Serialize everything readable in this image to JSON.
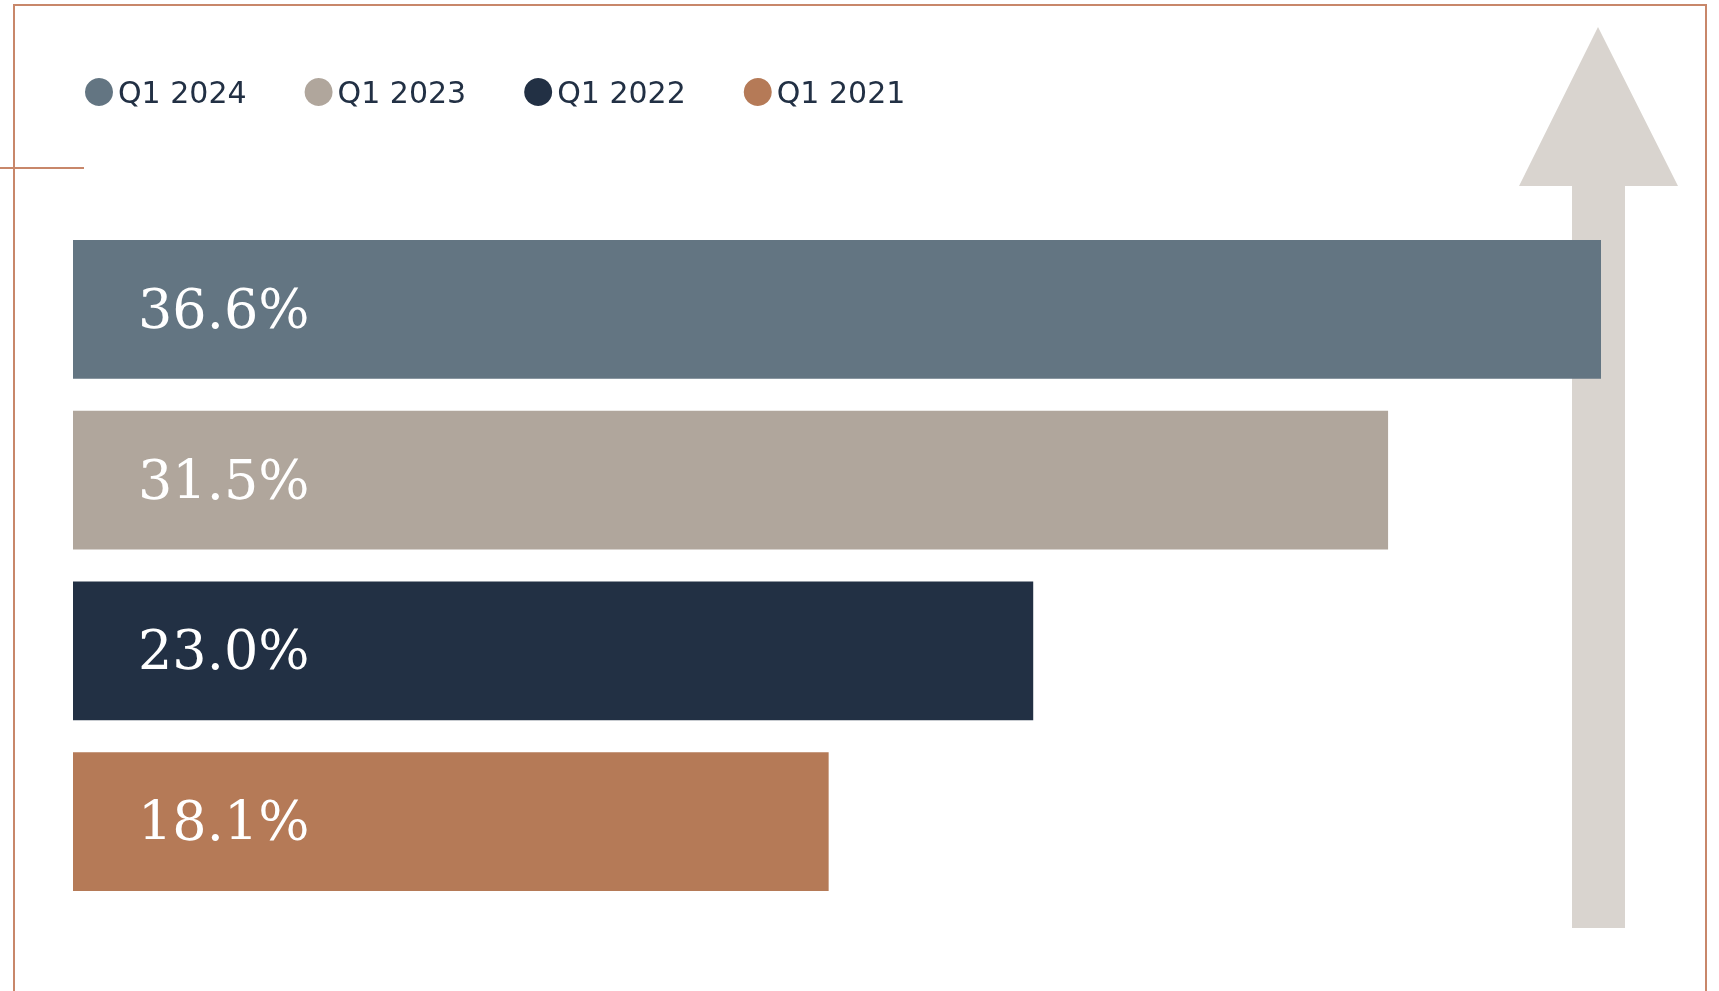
{
  "chart_data": {
    "type": "bar",
    "orientation": "horizontal",
    "categories": [
      null
    ],
    "series": [
      {
        "name": "Q1 2024",
        "color": "#637582",
        "values": [
          36.6
        ],
        "value_labels": [
          "36.6%"
        ]
      },
      {
        "name": "Q1 2023",
        "color": "#b0a69c",
        "values": [
          31.5
        ],
        "value_labels": [
          "31.5%"
        ]
      },
      {
        "name": "Q1 2022",
        "color": "#223044",
        "values": [
          23.0
        ],
        "value_labels": [
          "23.0%"
        ]
      },
      {
        "name": "Q1 2021",
        "color": "#b57a57",
        "values": [
          18.1
        ],
        "value_labels": [
          "18.1%"
        ]
      }
    ],
    "legend": "top left"
  }
}
